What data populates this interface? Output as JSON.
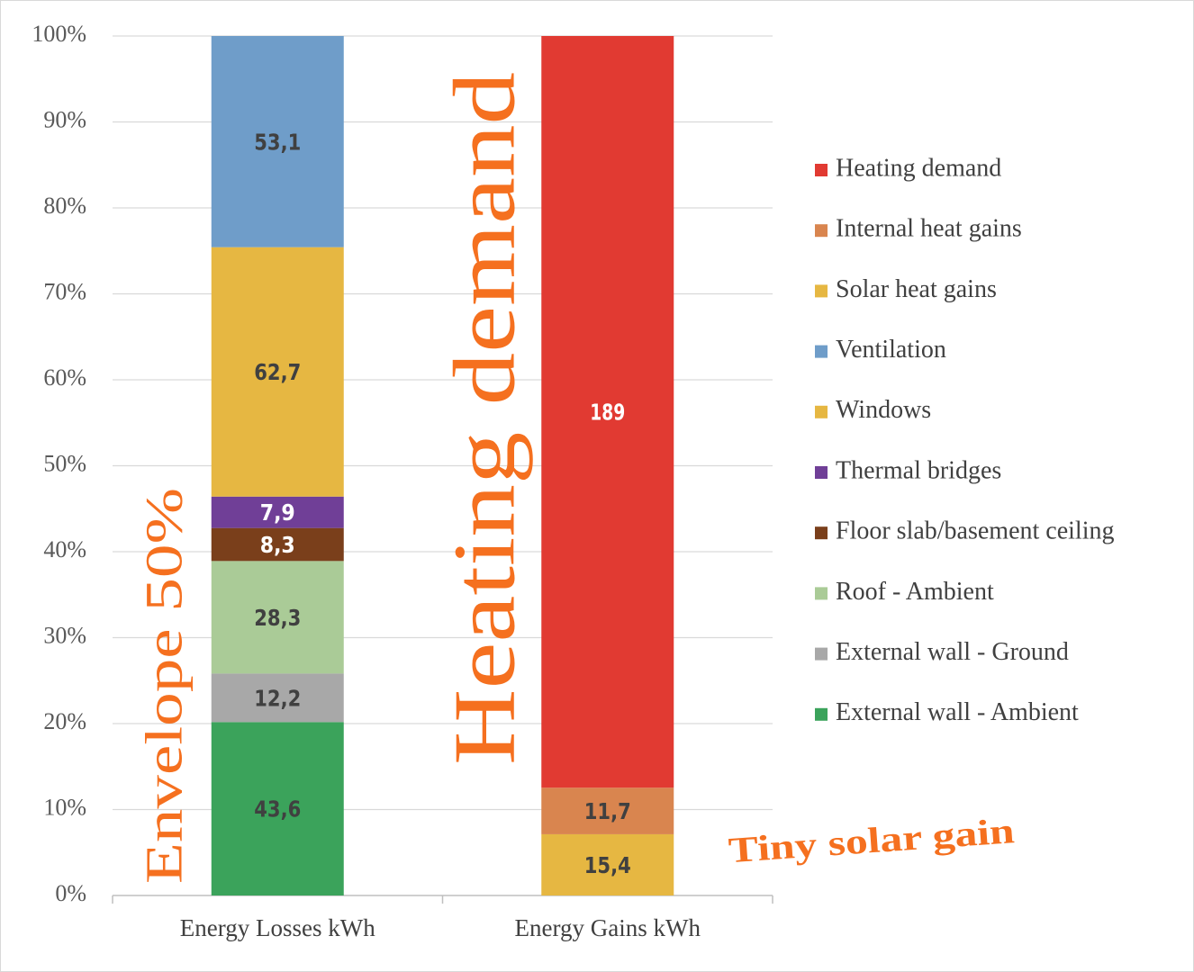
{
  "chart_data": {
    "type": "bar",
    "stacked": "percent",
    "categories": [
      "Energy Losses kWh",
      "Energy Gains kWh"
    ],
    "series": [
      {
        "name": "External wall - Ambient",
        "color": "#3ba35b",
        "values": [
          43.6,
          null
        ],
        "value_labels": [
          "43,6",
          null
        ]
      },
      {
        "name": "External wall - Ground",
        "color": "#a8a8a8",
        "values": [
          12.2,
          null
        ],
        "value_labels": [
          "12,2",
          null
        ]
      },
      {
        "name": "Roof - Ambient",
        "color": "#aacb97",
        "values": [
          28.3,
          null
        ],
        "value_labels": [
          "28,3",
          null
        ]
      },
      {
        "name": "Floor slab/basement ceiling",
        "color": "#7a3f1b",
        "values": [
          8.3,
          null
        ],
        "value_labels": [
          "8,3",
          null
        ]
      },
      {
        "name": "Thermal bridges",
        "color": "#703f97",
        "values": [
          7.9,
          null
        ],
        "value_labels": [
          "7,9",
          null
        ]
      },
      {
        "name": "Windows",
        "color": "#e6b742",
        "values": [
          62.7,
          null
        ],
        "value_labels": [
          "62,7",
          null
        ]
      },
      {
        "name": "Ventilation",
        "color": "#6f9dc9",
        "values": [
          53.1,
          null
        ],
        "value_labels": [
          "53,1",
          null
        ]
      },
      {
        "name": "Solar heat gains",
        "color": "#e6b742",
        "values": [
          null,
          15.4
        ],
        "value_labels": [
          null,
          "15,4"
        ]
      },
      {
        "name": "Internal heat gains",
        "color": "#d9854f",
        "values": [
          null,
          11.7
        ],
        "value_labels": [
          null,
          "11,7"
        ]
      },
      {
        "name": "Heating demand",
        "color": "#e13a32",
        "values": [
          null,
          189
        ],
        "value_labels": [
          null,
          "189"
        ]
      }
    ],
    "ylim": [
      0,
      100
    ],
    "yticks": [
      {
        "value": 0,
        "label": "0%"
      },
      {
        "value": 10,
        "label": "10%"
      },
      {
        "value": 20,
        "label": "20%"
      },
      {
        "value": 30,
        "label": "30%"
      },
      {
        "value": 40,
        "label": "40%"
      },
      {
        "value": 50,
        "label": "50%"
      },
      {
        "value": 60,
        "label": "60%"
      },
      {
        "value": 70,
        "label": "70%"
      },
      {
        "value": 80,
        "label": "80%"
      },
      {
        "value": 90,
        "label": "90%"
      },
      {
        "value": 100,
        "label": "100%"
      }
    ],
    "grid": true,
    "legend": "right",
    "annotations": [
      "Envelope 50%",
      "Heating demand",
      "Tiny solar gain"
    ]
  }
}
